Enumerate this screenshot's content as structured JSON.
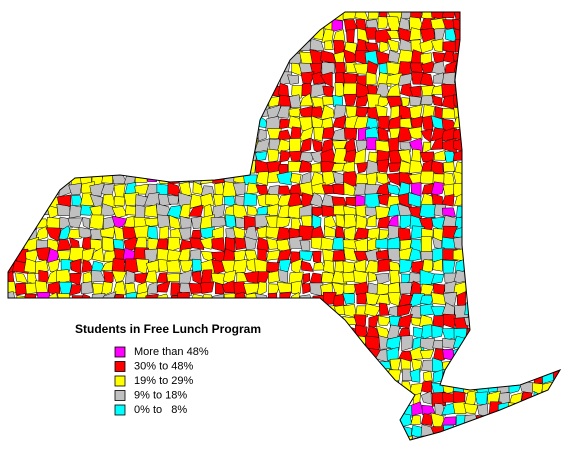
{
  "legend": {
    "title": "Students in Free Lunch Program",
    "items": [
      {
        "label": "More than 48%",
        "color": "#ff00ff"
      },
      {
        "label": "30% to 48%",
        "color": "#ff0000"
      },
      {
        "label": "19% to 29%",
        "color": "#ffff00"
      },
      {
        "label": "9% to 18%",
        "color": "#c0c0c0"
      },
      {
        "label": "0% to   8%",
        "color": "#00ffff"
      }
    ]
  }
}
